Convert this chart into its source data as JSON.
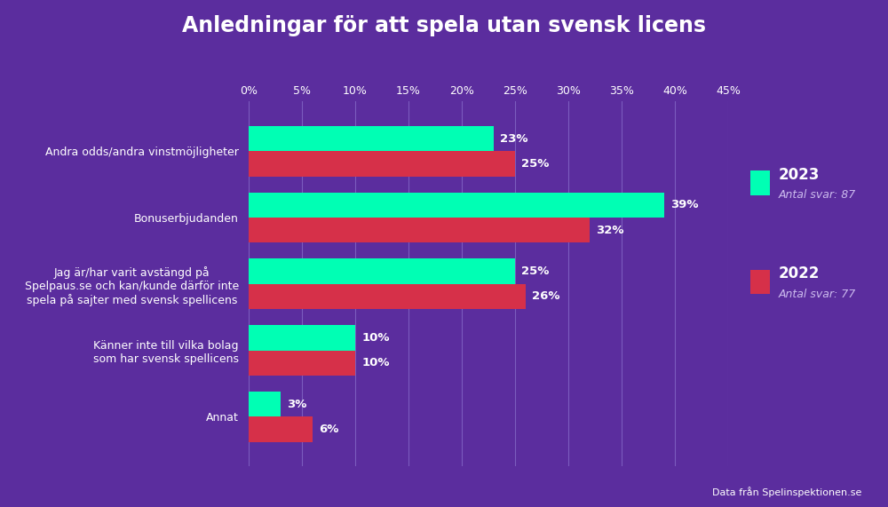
{
  "title": "Anledningar för att spela utan svensk licens",
  "categories": [
    "Annat",
    "Känner inte till vilka bolag\nsom har svensk spellicens",
    "Jag är/har varit avstängd på\nSpelpaus.se och kan/kunde därför inte\nspela på sajter med svensk spellicens",
    "Bonuserbjudanden",
    "Andra odds/andra vinstmöjligheter"
  ],
  "values_2023": [
    3,
    10,
    25,
    39,
    23
  ],
  "values_2022": [
    6,
    10,
    26,
    32,
    25
  ],
  "color_2023": "#00FFB4",
  "color_2022": "#D63049",
  "background_color": "#5B2D9E",
  "text_color": "#FFFFFF",
  "legend_2023": "2023",
  "legend_2022": "2022",
  "note_2023": "Antal svar: 87",
  "note_2022": "Antal svar: 77",
  "source": "Data från Spelinspektionen.se",
  "xlim": [
    0,
    45
  ],
  "xticks": [
    0,
    5,
    10,
    15,
    20,
    25,
    30,
    35,
    40,
    45
  ],
  "bar_height": 0.38,
  "grid_color": "#7B5CBE",
  "label_fontsize": 9,
  "value_fontsize": 9.5,
  "title_fontsize": 17
}
